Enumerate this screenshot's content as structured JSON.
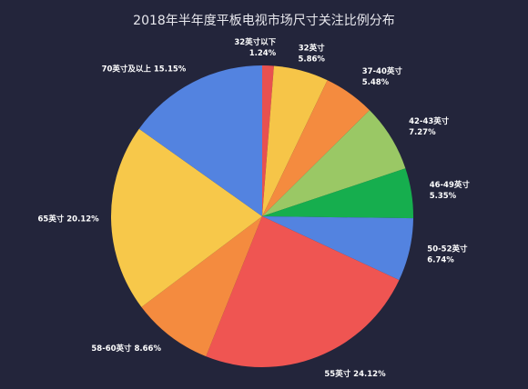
{
  "chart_data": {
    "type": "pie",
    "title": "2018年半年度平板电视市场尺寸关注比例分布",
    "slices": [
      {
        "label": "32英寸以下",
        "value": 1.24,
        "pct_text": "1.24%",
        "color": "#e8514f"
      },
      {
        "label": "32英寸",
        "value": 5.86,
        "pct_text": "5.86%",
        "color": "#f6c548"
      },
      {
        "label": "37-40英寸",
        "value": 5.48,
        "pct_text": "5.48%",
        "color": "#f48b3f"
      },
      {
        "label": "42-43英寸",
        "value": 7.27,
        "pct_text": "7.27%",
        "color": "#9ac865"
      },
      {
        "label": "46-49英寸",
        "value": 5.35,
        "pct_text": "5.35%",
        "color": "#16ae4e"
      },
      {
        "label": "50-52英寸",
        "value": 6.74,
        "pct_text": "6.74%",
        "color": "#5383e0"
      },
      {
        "label": "55英寸",
        "value": 24.12,
        "pct_text": "24.12%",
        "color": "#ef5552"
      },
      {
        "label": "58-60英寸",
        "value": 8.66,
        "pct_text": "8.66%",
        "color": "#f48b3f"
      },
      {
        "label": "65英寸",
        "value": 20.12,
        "pct_text": "20.12%",
        "color": "#f7c84a"
      },
      {
        "label": "70英寸及以上",
        "value": 15.15,
        "pct_text": "15.15%",
        "color": "#5383e0"
      }
    ]
  }
}
